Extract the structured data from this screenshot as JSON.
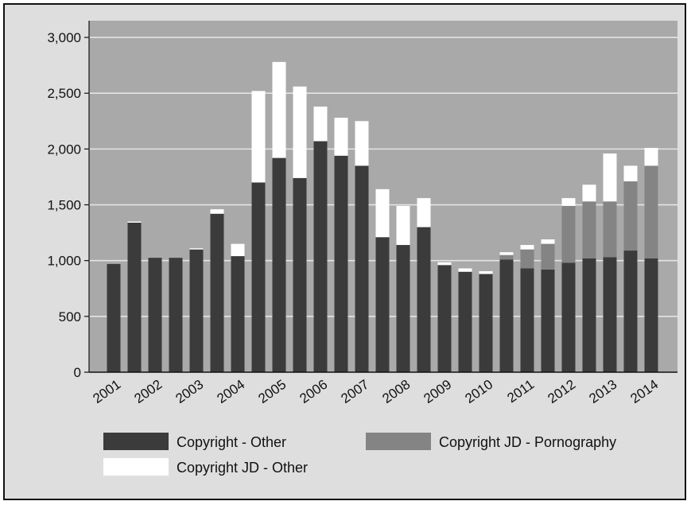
{
  "chart_data": {
    "type": "bar",
    "stacked": true,
    "title": "",
    "xlabel": "",
    "ylabel": "",
    "ylim": [
      0,
      3150
    ],
    "yticks": [
      0,
      500,
      1000,
      1500,
      2000,
      2500,
      3000
    ],
    "ytick_labels": [
      "0",
      "500",
      "1,000",
      "1,500",
      "2,000",
      "2,500",
      "3,000"
    ],
    "categories": [
      "2001",
      "2002",
      "2003",
      "2004",
      "2005",
      "2006",
      "2007",
      "2008",
      "2009",
      "2010",
      "2011",
      "2012",
      "2013",
      "2014"
    ],
    "bars": [
      {
        "year": "2001",
        "other": 970,
        "porn": 0,
        "jd_other": 0
      },
      {
        "year": "2001",
        "other": 1340,
        "porn": 0,
        "jd_other": 10
      },
      {
        "year": "2002",
        "other": 1025,
        "porn": 0,
        "jd_other": 0
      },
      {
        "year": "2002",
        "other": 1025,
        "porn": 0,
        "jd_other": 0
      },
      {
        "year": "2003",
        "other": 1100,
        "porn": 0,
        "jd_other": 10
      },
      {
        "year": "2003",
        "other": 1420,
        "porn": 0,
        "jd_other": 40
      },
      {
        "year": "2004",
        "other": 1040,
        "porn": 0,
        "jd_other": 110
      },
      {
        "year": "2004",
        "other": 1700,
        "porn": 0,
        "jd_other": 820
      },
      {
        "year": "2005",
        "other": 1920,
        "porn": 0,
        "jd_other": 860
      },
      {
        "year": "2005",
        "other": 1740,
        "porn": 0,
        "jd_other": 820
      },
      {
        "year": "2006",
        "other": 2070,
        "porn": 0,
        "jd_other": 310
      },
      {
        "year": "2006",
        "other": 1940,
        "porn": 0,
        "jd_other": 340
      },
      {
        "year": "2007",
        "other": 1850,
        "porn": 0,
        "jd_other": 400
      },
      {
        "year": "2007",
        "other": 1210,
        "porn": 0,
        "jd_other": 430
      },
      {
        "year": "2008",
        "other": 1140,
        "porn": 0,
        "jd_other": 350
      },
      {
        "year": "2008",
        "other": 1300,
        "porn": 0,
        "jd_other": 260
      },
      {
        "year": "2009",
        "other": 960,
        "porn": 0,
        "jd_other": 25
      },
      {
        "year": "2009",
        "other": 900,
        "porn": 0,
        "jd_other": 30
      },
      {
        "year": "2010",
        "other": 880,
        "porn": 0,
        "jd_other": 25
      },
      {
        "year": "2010",
        "other": 1010,
        "porn": 40,
        "jd_other": 25
      },
      {
        "year": "2011",
        "other": 930,
        "porn": 170,
        "jd_other": 40
      },
      {
        "year": "2011",
        "other": 920,
        "porn": 230,
        "jd_other": 40
      },
      {
        "year": "2012",
        "other": 980,
        "porn": 510,
        "jd_other": 70
      },
      {
        "year": "2012",
        "other": 1020,
        "porn": 510,
        "jd_other": 150
      },
      {
        "year": "2013",
        "other": 1030,
        "porn": 500,
        "jd_other": 430
      },
      {
        "year": "2013",
        "other": 1090,
        "porn": 620,
        "jd_other": 140
      },
      {
        "year": "2014",
        "other": 1020,
        "porn": 830,
        "jd_other": 160
      }
    ],
    "series": [
      {
        "name": "Copyright - Other",
        "key": "other",
        "color": "#3b3b3b"
      },
      {
        "name": "Copyright JD - Pornography",
        "key": "porn",
        "color": "#848484"
      },
      {
        "name": "Copyright JD - Other",
        "key": "jd_other",
        "color": "#ffffff"
      }
    ],
    "grid": true,
    "legend_placement": "bottom"
  },
  "colors": {
    "plot_background": "#a9a9a9",
    "frame_background": "#dedede",
    "gridline": "#e4e4e4"
  }
}
